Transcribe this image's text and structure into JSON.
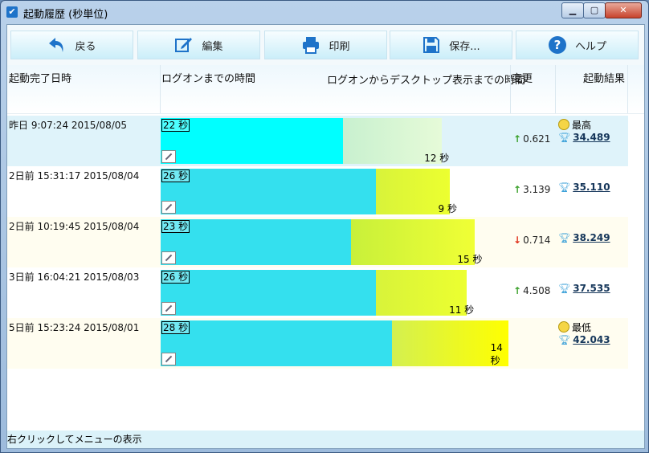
{
  "window": {
    "title": "起動履歴 (秒単位)"
  },
  "toolbar": {
    "back": "戻る",
    "edit": "編集",
    "print": "印刷",
    "save": "保存...",
    "help": "ヘルプ"
  },
  "columns": {
    "date": "起動完了日時",
    "logon": "ログオンまでの時間",
    "desktop": "ログオンからデスクトップ表示までの時間",
    "change": "変更",
    "result": "起動結果"
  },
  "rows": [
    {
      "date": "昨日  9:07:24 2015/08/05",
      "logon": "22 秒",
      "desktop": "12 秒",
      "change": "0.621",
      "change_dir": "up",
      "rating": "最高",
      "score": "34.489",
      "logon_value": 22,
      "desktop_value": 12
    },
    {
      "date": "2日前  15:31:17 2015/08/04",
      "logon": "26 秒",
      "desktop": "9 秒",
      "change": "3.139",
      "change_dir": "up",
      "rating": "",
      "score": "35.110",
      "logon_value": 26,
      "desktop_value": 9
    },
    {
      "date": "2日前  10:19:45 2015/08/04",
      "logon": "23 秒",
      "desktop": "15 秒",
      "change": "0.714",
      "change_dir": "down",
      "rating": "",
      "score": "38.249",
      "logon_value": 23,
      "desktop_value": 15
    },
    {
      "date": "3日前  16:04:21 2015/08/03",
      "logon": "26 秒",
      "desktop": "11 秒",
      "change": "4.508",
      "change_dir": "up",
      "rating": "",
      "score": "37.535",
      "logon_value": 26,
      "desktop_value": 11
    },
    {
      "date": "5日前  15:23:24 2015/08/01",
      "logon": "28 秒",
      "desktop": "14 秒",
      "change": "",
      "change_dir": "",
      "rating": "最低",
      "score": "42.043",
      "logon_value": 28,
      "desktop_value": 14
    }
  ],
  "status": {
    "text": "右クリックしてメニューの表示"
  },
  "colors": {
    "accent": "#1e73c9",
    "selected_row": "#dff3fa",
    "odd_row": "#fffdf0",
    "up_arrow": "#3aa02a",
    "down_arrow": "#e0301a"
  }
}
